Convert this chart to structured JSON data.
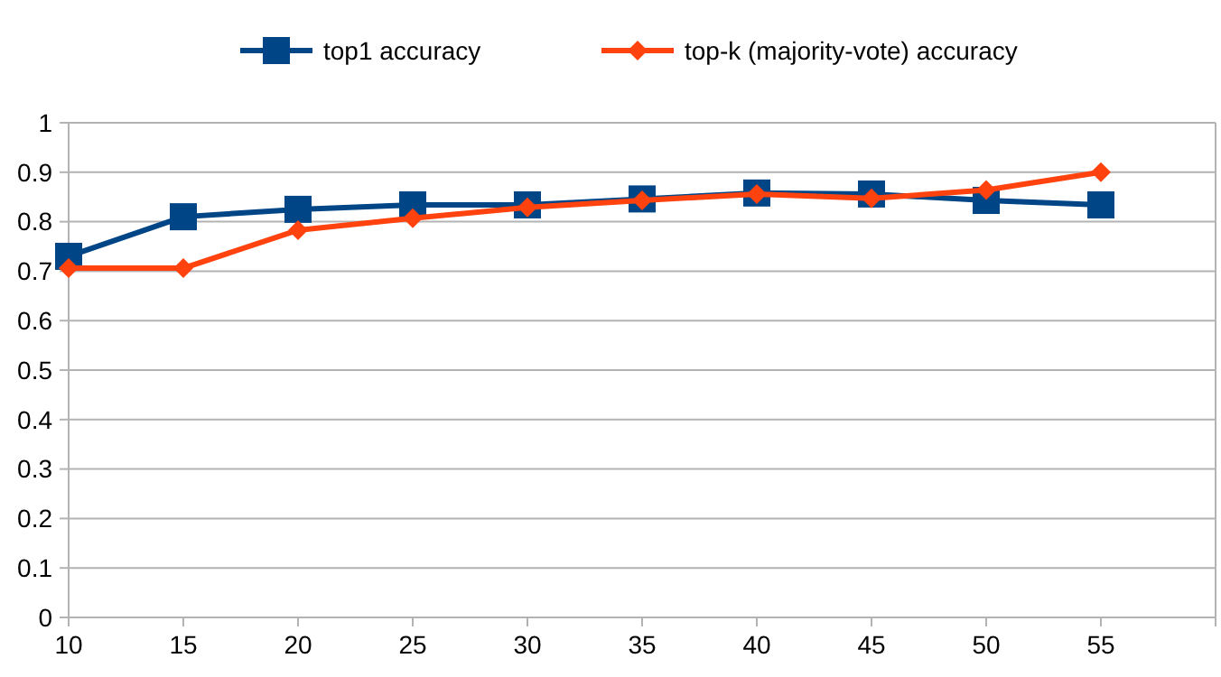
{
  "chart_data": {
    "type": "line",
    "x": [
      10,
      15,
      20,
      25,
      30,
      35,
      40,
      45,
      50,
      55
    ],
    "series": [
      {
        "name": "top1 accuracy",
        "color": "#004586",
        "marker": "square",
        "values": [
          0.73,
          0.81,
          0.825,
          0.834,
          0.834,
          0.846,
          0.858,
          0.856,
          0.843,
          0.834
        ]
      },
      {
        "name": "top-k (majority-vote) accuracy",
        "color": "#ff420e",
        "marker": "diamond",
        "values": [
          0.706,
          0.706,
          0.783,
          0.807,
          0.829,
          0.843,
          0.856,
          0.847,
          0.864,
          0.9
        ]
      }
    ],
    "xlim": [
      10,
      60
    ],
    "xticks": [
      10,
      15,
      20,
      25,
      30,
      35,
      40,
      45,
      50,
      55,
      {
        "value": 60,
        "label": null
      }
    ],
    "ylim": [
      0,
      1
    ],
    "yticks": [
      0,
      0.1,
      0.2,
      0.3,
      0.4,
      0.5,
      0.6,
      0.7,
      0.8,
      0.9,
      1
    ],
    "grid": "y",
    "legend": "top"
  }
}
